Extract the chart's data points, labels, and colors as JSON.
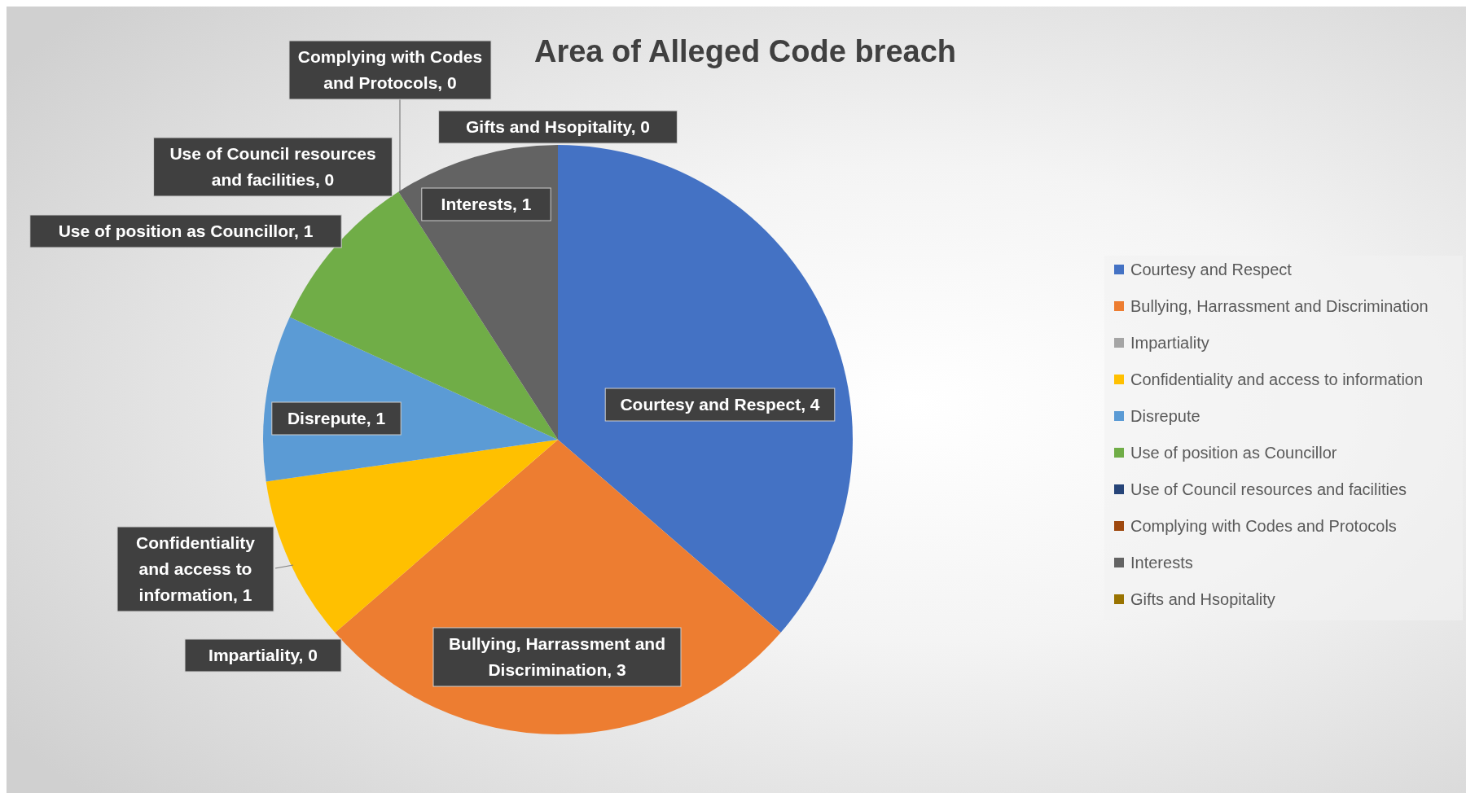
{
  "chart_data": {
    "type": "pie",
    "title": "Area of Alleged Code breach",
    "categories": [
      "Courtesy and Respect",
      "Bullying, Harrassment and Discrimination",
      "Impartiality",
      "Confidentiality and access to information",
      "Disrepute",
      "Use of position as Councillor",
      "Use of Council resources and facilities",
      "Complying with Codes and Protocols",
      "Interests",
      "Gifts and Hsopitality"
    ],
    "values": [
      4,
      3,
      0,
      1,
      1,
      1,
      0,
      0,
      1,
      0
    ],
    "colors": [
      "#4472c4",
      "#ed7d31",
      "#a5a5a5",
      "#ffc000",
      "#5b9bd5",
      "#70ad47",
      "#264478",
      "#9e480e",
      "#636363",
      "#997300"
    ],
    "value_labels": [
      "Courtesy and Respect, 4",
      "Bullying, Harrassment and Discrimination, 3",
      "Impartiality, 0",
      "Confidentiality and access to information, 1",
      "Disrepute, 1",
      "Use of position as Councillor, 1",
      "Use of Council resources and facilities, 0",
      "Complying with Codes and Protocols, 0",
      "Interests, 1",
      "Gifts and Hsopitality, 0"
    ],
    "legend": "right"
  }
}
